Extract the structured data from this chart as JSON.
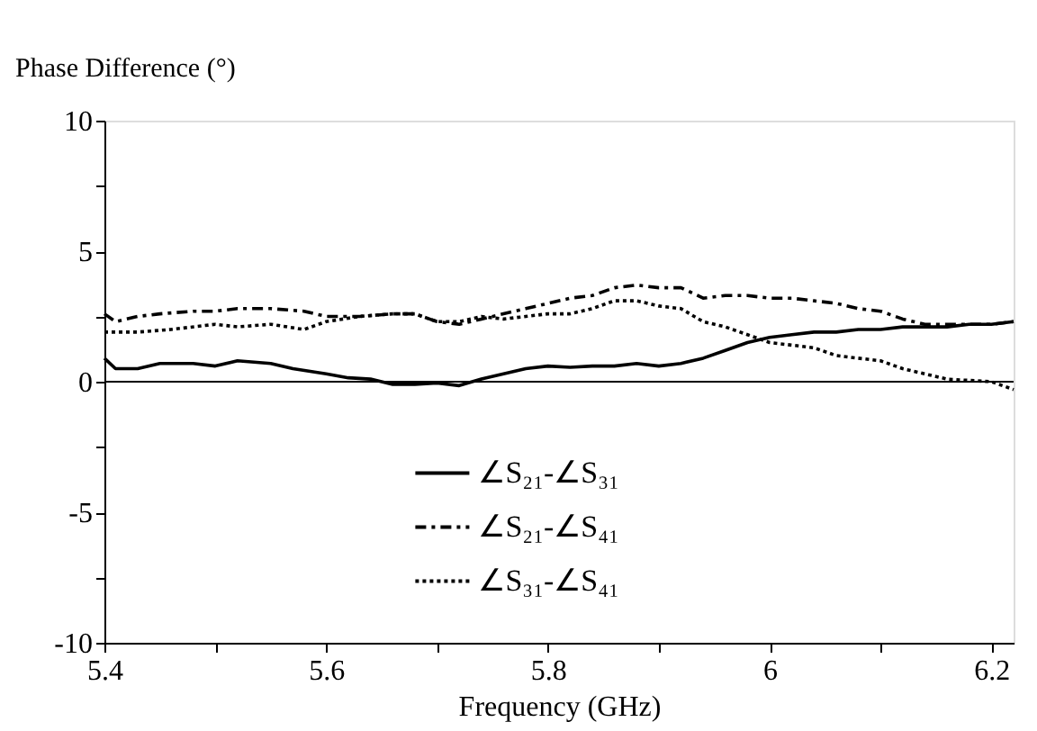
{
  "chart_data": {
    "type": "line",
    "xlabel": "Frequency (GHz)",
    "ylabel": "Phase Difference (°)",
    "xlim": [
      5.4,
      6.22
    ],
    "ylim": [
      -10,
      10
    ],
    "xticks": [
      5.4,
      {
        "value": 5.5,
        "label": null
      },
      5.6,
      {
        "value": 5.7,
        "label": null
      },
      5.8,
      {
        "value": 5.9,
        "label": null
      },
      6,
      {
        "value": 6.1,
        "label": null
      },
      6.2
    ],
    "yticks": [
      -10,
      {
        "value": -7.5,
        "label": null
      },
      -5,
      {
        "value": -2.5,
        "label": null
      },
      0,
      {
        "value": 2.5,
        "label": null
      },
      5,
      {
        "value": 7.5,
        "label": null
      },
      10
    ],
    "grid": false,
    "legend": "bottom",
    "marker": "none",
    "ref_lines": [
      {
        "axis": "y",
        "value": 0,
        "color": "#000000",
        "line_style": "solid"
      }
    ],
    "x": [
      5.4,
      5.41,
      5.43,
      5.45,
      5.48,
      5.5,
      5.52,
      5.55,
      5.57,
      5.6,
      5.62,
      5.64,
      5.66,
      5.68,
      5.7,
      5.72,
      5.74,
      5.76,
      5.78,
      5.8,
      5.82,
      5.84,
      5.86,
      5.88,
      5.9,
      5.92,
      5.94,
      5.96,
      5.98,
      6.0,
      6.02,
      6.04,
      6.06,
      6.08,
      6.1,
      6.12,
      6.14,
      6.16,
      6.18,
      6.2,
      6.22
    ],
    "series": [
      {
        "name": "∠S₂₁-∠S₃₁",
        "color": "#000000",
        "line_style": "solid",
        "values": [
          0.9,
          0.5,
          0.5,
          0.7,
          0.7,
          0.6,
          0.8,
          0.7,
          0.5,
          0.3,
          0.15,
          0.1,
          -0.1,
          -0.1,
          -0.05,
          -0.15,
          0.1,
          0.3,
          0.5,
          0.6,
          0.55,
          0.6,
          0.6,
          0.7,
          0.6,
          0.7,
          0.9,
          1.2,
          1.5,
          1.7,
          1.8,
          1.9,
          1.9,
          2.0,
          2.0,
          2.1,
          2.1,
          2.1,
          2.2,
          2.2,
          2.3
        ]
      },
      {
        "name": "∠S₂₁-∠S₄₁",
        "color": "#000000",
        "line_style": "dashed",
        "x": [
          5.4,
          5.41,
          5.43,
          5.45,
          5.48,
          5.5,
          5.52,
          5.55,
          5.58,
          5.6,
          5.63,
          5.66,
          5.68,
          5.7,
          5.72,
          5.74,
          5.76,
          5.78,
          5.8,
          5.82,
          5.84,
          5.86,
          5.88,
          5.9,
          5.92,
          5.94,
          5.96,
          5.98,
          6.0,
          6.02,
          6.04,
          6.06,
          6.08,
          6.1,
          6.12,
          6.14,
          6.16,
          6.18,
          6.2,
          6.22
        ],
        "values": [
          2.6,
          2.3,
          2.5,
          2.6,
          2.7,
          2.7,
          2.8,
          2.8,
          2.7,
          2.5,
          2.5,
          2.6,
          2.6,
          2.3,
          2.2,
          2.4,
          2.6,
          2.8,
          3.0,
          3.2,
          3.3,
          3.6,
          3.7,
          3.6,
          3.6,
          3.2,
          3.3,
          3.3,
          3.2,
          3.2,
          3.1,
          3.0,
          2.8,
          2.7,
          2.4,
          2.2,
          2.2,
          2.2,
          2.2,
          2.3
        ]
      },
      {
        "name": "∠S₃₁-∠S₄₁",
        "color": "#000000",
        "line_style": "dotted",
        "x": [
          5.4,
          5.43,
          5.46,
          5.5,
          5.52,
          5.55,
          5.58,
          5.6,
          5.63,
          5.66,
          5.68,
          5.7,
          5.72,
          5.74,
          5.76,
          5.78,
          5.8,
          5.82,
          5.84,
          5.86,
          5.88,
          5.9,
          5.92,
          5.94,
          5.96,
          5.98,
          6.0,
          6.02,
          6.04,
          6.06,
          6.08,
          6.1,
          6.12,
          6.14,
          6.16,
          6.18,
          6.2,
          6.22
        ],
        "values": [
          1.9,
          1.9,
          2.0,
          2.2,
          2.1,
          2.2,
          2.0,
          2.3,
          2.5,
          2.6,
          2.6,
          2.3,
          2.3,
          2.5,
          2.4,
          2.5,
          2.6,
          2.6,
          2.8,
          3.1,
          3.1,
          2.9,
          2.8,
          2.3,
          2.1,
          1.8,
          1.5,
          1.4,
          1.3,
          1.0,
          0.9,
          0.8,
          0.5,
          0.3,
          0.1,
          0.05,
          0.0,
          -0.3
        ]
      }
    ]
  }
}
